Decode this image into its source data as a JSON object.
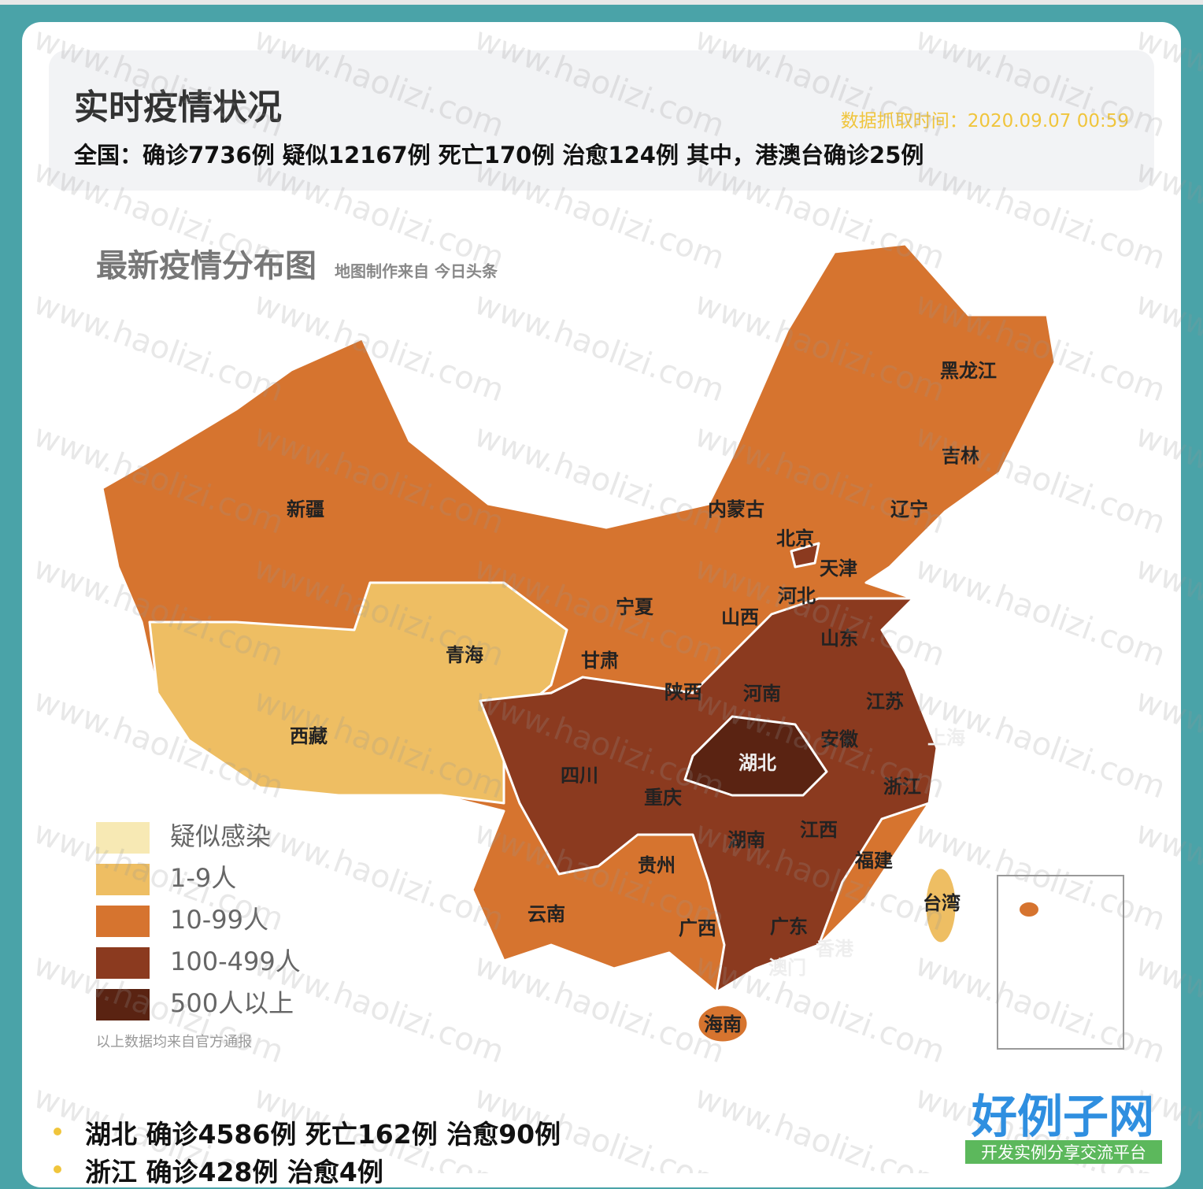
{
  "header": {
    "title": "实时疫情状况",
    "update_time": "数据抓取时间：2020.09.07 00:59",
    "summary": "全国：确诊7736例 疑似12167例 死亡170例 治愈124例 其中，港澳台确诊25例"
  },
  "map": {
    "title": "最新疫情分布图",
    "source": "地图制作来自 今日头条",
    "provinces": [
      "黑龙江",
      "吉林",
      "辽宁",
      "内蒙古",
      "北京",
      "天津",
      "河北",
      "新疆",
      "宁夏",
      "山西",
      "山东",
      "青海",
      "甘肃",
      "陕西",
      "河南",
      "江苏",
      "西藏",
      "安徽",
      "上海",
      "湖北",
      "四川",
      "重庆",
      "浙江",
      "江西",
      "湖南",
      "贵州",
      "福建",
      "台湾",
      "云南",
      "广西",
      "广东",
      "香港",
      "澳门",
      "海南"
    ],
    "legend": [
      {
        "label": "疑似感染",
        "color": "#f7e9b4"
      },
      {
        "label": "1-9人",
        "color": "#eebe63"
      },
      {
        "label": "10-99人",
        "color": "#d6742f"
      },
      {
        "label": "100-499人",
        "color": "#8b3a1f"
      },
      {
        "label": "500人以上",
        "color": "#5a2312"
      }
    ],
    "note": "以上数据均来自官方通报"
  },
  "list": [
    "湖北 确诊4586例 死亡162例 治愈90例",
    "浙江 确诊428例 治愈4例"
  ],
  "watermark": "www.haolizi.com",
  "logo": {
    "name": "好例子网",
    "tagline": "开发实例分享交流平台"
  }
}
